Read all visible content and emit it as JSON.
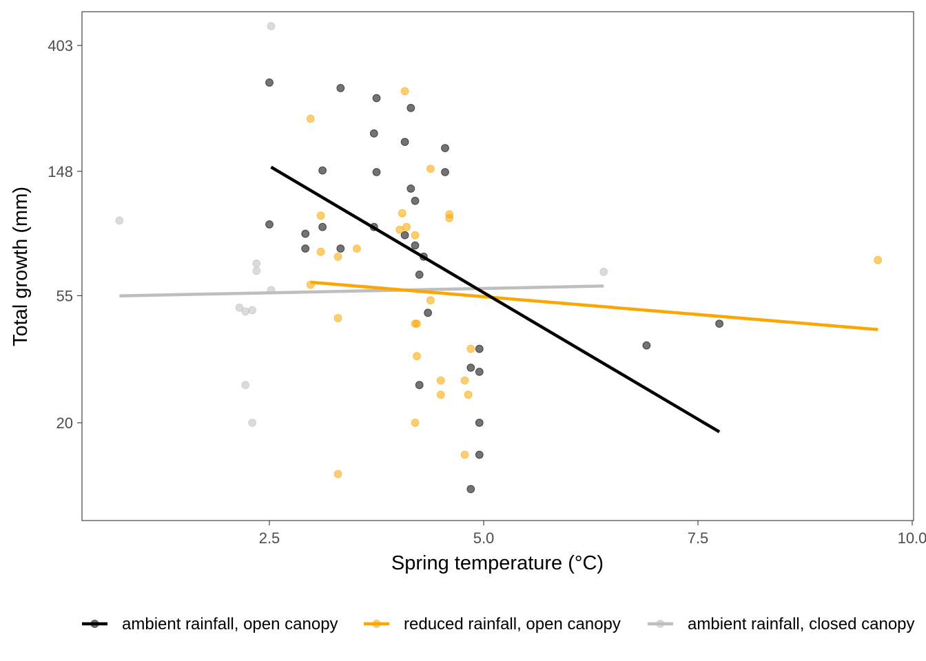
{
  "chart_data": {
    "type": "scatter",
    "xlabel": "Spring temperature (°C)",
    "ylabel": "Total growth (mm)",
    "x_ticks": [
      2.5,
      5.0,
      7.5,
      10.0
    ],
    "x_tick_labels": [
      "2.5",
      "5.0",
      "7.5",
      "10.0"
    ],
    "y_ticks": [
      20,
      55,
      148,
      403
    ],
    "y_tick_labels": [
      "20",
      "55",
      "148",
      "403"
    ],
    "y_scale": "log",
    "xlim": [
      0.5,
      10.05
    ],
    "ylim": [
      9.3,
      520
    ],
    "grid": false,
    "legend_position": "bottom",
    "series": [
      {
        "name": "ambient rainfall, open canopy",
        "color": "#000000",
        "points": [
          [
            2.5,
            300
          ],
          [
            3.33,
            287
          ],
          [
            3.75,
            265
          ],
          [
            4.15,
            245
          ],
          [
            3.72,
            200
          ],
          [
            4.08,
            187
          ],
          [
            4.55,
            178
          ],
          [
            3.12,
            149
          ],
          [
            3.75,
            147
          ],
          [
            4.55,
            147
          ],
          [
            4.15,
            129
          ],
          [
            4.2,
            117
          ],
          [
            2.5,
            97
          ],
          [
            3.12,
            95
          ],
          [
            3.72,
            95
          ],
          [
            2.92,
            90
          ],
          [
            4.08,
            89
          ],
          [
            4.2,
            82
          ],
          [
            2.92,
            80
          ],
          [
            3.33,
            80
          ],
          [
            4.3,
            75
          ],
          [
            4.25,
            65
          ],
          [
            4.35,
            48
          ],
          [
            7.75,
            44
          ],
          [
            6.9,
            37
          ],
          [
            4.95,
            36
          ],
          [
            4.85,
            31
          ],
          [
            4.95,
            30
          ],
          [
            4.25,
            27
          ],
          [
            4.95,
            20
          ],
          [
            4.95,
            15.5
          ],
          [
            4.85,
            11.8
          ]
        ],
        "trend": [
          [
            2.52,
            153
          ],
          [
            7.75,
            18.6
          ]
        ]
      },
      {
        "name": "reduced rainfall, open canopy",
        "color": "#FFA500",
        "points": [
          [
            4.08,
            280
          ],
          [
            2.98,
            225
          ],
          [
            4.38,
            151
          ],
          [
            4.05,
            106
          ],
          [
            3.1,
            104
          ],
          [
            4.6,
            105
          ],
          [
            4.6,
            102
          ],
          [
            4.1,
            95
          ],
          [
            4.02,
            93
          ],
          [
            4.2,
            89
          ],
          [
            3.52,
            80
          ],
          [
            3.1,
            78
          ],
          [
            3.3,
            75
          ],
          [
            9.6,
            73
          ],
          [
            2.98,
            60
          ],
          [
            4.38,
            53
          ],
          [
            3.3,
            46
          ],
          [
            4.2,
            44
          ],
          [
            4.22,
            44
          ],
          [
            4.85,
            36
          ],
          [
            4.22,
            34
          ],
          [
            4.5,
            28
          ],
          [
            4.78,
            28
          ],
          [
            4.5,
            25
          ],
          [
            4.82,
            25
          ],
          [
            4.2,
            20
          ],
          [
            4.78,
            15.5
          ],
          [
            3.3,
            13.3
          ]
        ],
        "trend": [
          [
            2.98,
            61.2
          ],
          [
            9.6,
            42
          ]
        ]
      },
      {
        "name": "ambient rainfall, closed canopy",
        "color": "#BEBEBE",
        "points": [
          [
            2.52,
            470
          ],
          [
            0.75,
            100
          ],
          [
            2.35,
            71
          ],
          [
            2.35,
            67
          ],
          [
            6.4,
            66.5
          ],
          [
            2.52,
            57.5
          ],
          [
            2.15,
            50
          ],
          [
            2.22,
            48.5
          ],
          [
            2.3,
            49
          ],
          [
            2.22,
            27
          ],
          [
            2.3,
            20
          ]
        ],
        "trend": [
          [
            0.75,
            54.9
          ],
          [
            6.4,
            59.4
          ]
        ]
      }
    ]
  }
}
